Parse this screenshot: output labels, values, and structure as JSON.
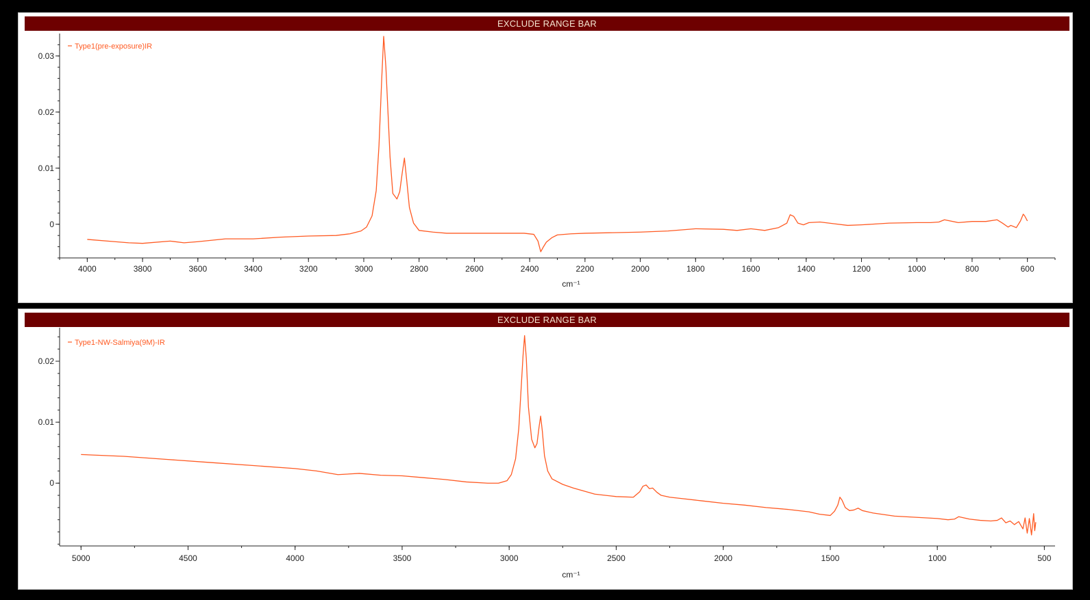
{
  "colors": {
    "trace": "#ff5a22",
    "range_bar": "#6e0000",
    "frame": "#000000"
  },
  "panels": [
    {
      "range_bar_label": "EXCLUDE RANGE BAR"
    },
    {
      "range_bar_label": "EXCLUDE RANGE BAR"
    }
  ],
  "chart_data": [
    {
      "type": "line",
      "xlabel": "cm⁻¹",
      "ylabel": "",
      "x_reversed": true,
      "xlim": [
        4100,
        500
      ],
      "ylim": [
        -0.006,
        0.034
      ],
      "x_ticks": [
        4000,
        3800,
        3600,
        3400,
        3200,
        3000,
        2800,
        2600,
        2400,
        2200,
        2000,
        1800,
        1600,
        1400,
        1200,
        1000,
        800,
        600
      ],
      "y_ticks": [
        0,
        0.01,
        0.02,
        0.03
      ],
      "y_tick_labels": [
        "0",
        "0.01",
        "0.02",
        "0.03"
      ],
      "legend_position": "top-left",
      "series": [
        {
          "name": "Type1(pre-exposure)IR",
          "x": [
            4000,
            3900,
            3850,
            3800,
            3700,
            3650,
            3600,
            3500,
            3400,
            3300,
            3200,
            3100,
            3050,
            3010,
            2990,
            2970,
            2955,
            2945,
            2935,
            2928,
            2920,
            2905,
            2895,
            2880,
            2870,
            2860,
            2853,
            2845,
            2835,
            2820,
            2800,
            2750,
            2700,
            2600,
            2500,
            2420,
            2385,
            2370,
            2360,
            2350,
            2340,
            2320,
            2300,
            2250,
            2200,
            2100,
            2000,
            1900,
            1800,
            1700,
            1650,
            1600,
            1550,
            1500,
            1470,
            1458,
            1445,
            1430,
            1410,
            1390,
            1350,
            1300,
            1250,
            1200,
            1100,
            1000,
            950,
            920,
            900,
            850,
            800,
            750,
            710,
            690,
            670,
            660,
            640,
            625,
            615,
            610,
            600
          ],
          "y": [
            -0.0027,
            -0.0031,
            -0.0033,
            -0.0034,
            -0.003,
            -0.0033,
            -0.0031,
            -0.0026,
            -0.0026,
            -0.0023,
            -0.0021,
            -0.002,
            -0.0017,
            -0.0012,
            -0.0005,
            0.0015,
            0.006,
            0.014,
            0.026,
            0.0335,
            0.028,
            0.012,
            0.0055,
            0.0045,
            0.0058,
            0.0095,
            0.0118,
            0.008,
            0.003,
            0.0002,
            -0.0011,
            -0.0014,
            -0.0016,
            -0.0016,
            -0.0016,
            -0.0016,
            -0.0018,
            -0.003,
            -0.0049,
            -0.004,
            -0.0032,
            -0.0024,
            -0.0019,
            -0.0017,
            -0.0016,
            -0.0015,
            -0.0014,
            -0.0012,
            -0.0008,
            -0.0009,
            -0.0011,
            -0.0008,
            -0.0011,
            -0.0006,
            0.0002,
            0.0017,
            0.0014,
            0.0002,
            -0.0001,
            0.0003,
            0.0004,
            0.0001,
            -0.0002,
            -0.0001,
            0.0002,
            0.0003,
            0.0003,
            0.0004,
            0.0008,
            0.0003,
            0.0005,
            0.0005,
            0.0008,
            0.0002,
            -0.0005,
            -0.0002,
            -0.0006,
            0.0006,
            0.0018,
            0.0015,
            0.0006
          ]
        }
      ]
    },
    {
      "type": "line",
      "xlabel": "cm⁻¹",
      "ylabel": "",
      "x_reversed": true,
      "xlim": [
        5100,
        450
      ],
      "ylim": [
        -0.0103,
        0.0255
      ],
      "x_ticks": [
        5000,
        4500,
        4000,
        3500,
        3000,
        2500,
        2000,
        1500,
        1000,
        500
      ],
      "y_ticks": [
        0,
        0.01,
        0.02
      ],
      "y_tick_labels": [
        "0",
        "0.01",
        "0.02"
      ],
      "legend_position": "top-left",
      "series": [
        {
          "name": "Type1-NW-Salmiya(9M)-IR",
          "x": [
            5000,
            4800,
            4600,
            4400,
            4200,
            4000,
            3900,
            3800,
            3700,
            3600,
            3500,
            3400,
            3300,
            3200,
            3100,
            3050,
            3010,
            2990,
            2970,
            2955,
            2945,
            2935,
            2928,
            2920,
            2910,
            2895,
            2880,
            2870,
            2860,
            2853,
            2845,
            2835,
            2820,
            2800,
            2750,
            2700,
            2600,
            2500,
            2420,
            2390,
            2375,
            2360,
            2345,
            2330,
            2310,
            2290,
            2250,
            2200,
            2100,
            2000,
            1900,
            1800,
            1700,
            1600,
            1550,
            1500,
            1480,
            1465,
            1455,
            1445,
            1430,
            1410,
            1390,
            1370,
            1350,
            1300,
            1200,
            1100,
            1000,
            950,
            920,
            900,
            850,
            800,
            750,
            720,
            700,
            680,
            660,
            640,
            620,
            600,
            590,
            580,
            570,
            560,
            550,
            545,
            540
          ],
          "y": [
            0.0047,
            0.0044,
            0.0039,
            0.0034,
            0.0029,
            0.0024,
            0.002,
            0.0014,
            0.0016,
            0.0013,
            0.0012,
            0.0009,
            0.0006,
            0.0002,
            0.0,
            0.0,
            0.0004,
            0.0014,
            0.004,
            0.009,
            0.015,
            0.021,
            0.0242,
            0.0205,
            0.0125,
            0.0072,
            0.0058,
            0.0065,
            0.0093,
            0.011,
            0.0085,
            0.0045,
            0.002,
            0.0007,
            -0.0002,
            -0.0008,
            -0.0018,
            -0.0022,
            -0.0023,
            -0.0014,
            -0.0005,
            -0.0003,
            -0.0009,
            -0.0008,
            -0.0015,
            -0.002,
            -0.0023,
            -0.0025,
            -0.0029,
            -0.0033,
            -0.0036,
            -0.004,
            -0.0043,
            -0.0047,
            -0.0051,
            -0.0053,
            -0.0046,
            -0.0036,
            -0.0023,
            -0.0028,
            -0.004,
            -0.0045,
            -0.0044,
            -0.0041,
            -0.0045,
            -0.0049,
            -0.0054,
            -0.0056,
            -0.0058,
            -0.006,
            -0.0059,
            -0.0055,
            -0.0059,
            -0.0061,
            -0.0062,
            -0.0061,
            -0.0057,
            -0.0065,
            -0.0062,
            -0.0068,
            -0.0063,
            -0.0075,
            -0.0057,
            -0.0082,
            -0.0058,
            -0.0085,
            -0.005,
            -0.0078,
            -0.0064
          ]
        }
      ]
    }
  ]
}
